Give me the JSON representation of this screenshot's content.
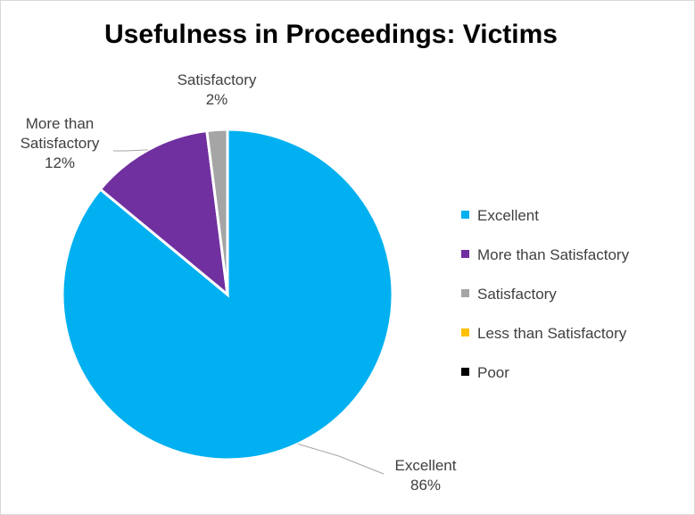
{
  "chart_data": {
    "type": "pie",
    "title": "Usefulness in Proceedings: Victims",
    "legend_position": "right",
    "slices": [
      {
        "label": "Excellent",
        "value": 86,
        "value_label": "86%",
        "color": "#00B0F0"
      },
      {
        "label": "More than Satisfactory",
        "value": 12,
        "value_label": "12%",
        "color": "#7030A0"
      },
      {
        "label": "Satisfactory",
        "value": 2,
        "value_label": "2%",
        "color": "#A5A5A5"
      },
      {
        "label": "Less than Satisfactory",
        "value": 0,
        "value_label": "0%",
        "color": "#FFC000"
      },
      {
        "label": "Poor",
        "value": 0,
        "value_label": "0%",
        "color": "#000000"
      }
    ],
    "data_labels": [
      {
        "lines": [
          "Excellent",
          "86%"
        ]
      },
      {
        "lines": [
          "More than",
          "Satisfactory",
          "12%"
        ]
      },
      {
        "lines": [
          "Satisfactory",
          "2%"
        ]
      }
    ]
  }
}
